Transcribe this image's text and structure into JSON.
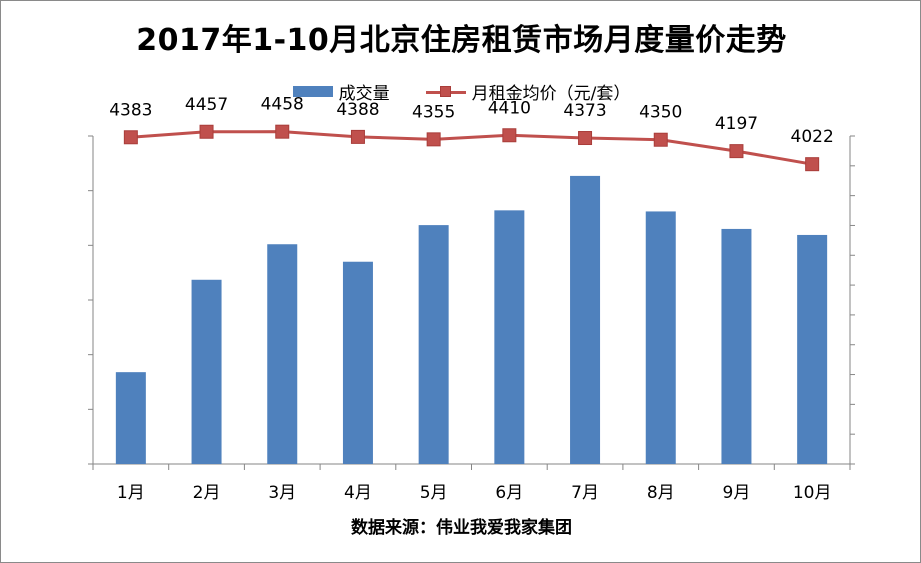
{
  "chart_data": {
    "type": "bar+line",
    "title": "2017年1-10月北京住房租赁市场月度量价走势",
    "categories": [
      "1月",
      "2月",
      "3月",
      "4月",
      "5月",
      "6月",
      "7月",
      "8月",
      "9月",
      "10月"
    ],
    "series": [
      {
        "name": "成交量",
        "type": "bar",
        "axis": "left",
        "values": [
          1.68,
          3.37,
          4.02,
          3.7,
          4.37,
          4.64,
          5.27,
          4.62,
          4.3,
          4.19
        ]
      },
      {
        "name": "月租金均价（元/套）",
        "type": "line",
        "axis": "right",
        "values": [
          4383,
          4457,
          4458,
          4388,
          4355,
          4410,
          4373,
          4350,
          4197,
          4022
        ],
        "data_labels": [
          "4383",
          "4457",
          "4458",
          "4388",
          "4355",
          "4410",
          "4373",
          "4350",
          "4197",
          "4022"
        ]
      }
    ],
    "y_left": {
      "ylim": [
        0,
        6
      ],
      "tick_labels_shown": false,
      "ticks": [
        0,
        1,
        2,
        3,
        4,
        5,
        6
      ]
    },
    "y_right": {
      "ylim": [
        0,
        4400
      ],
      "tick_labels_shown": false,
      "ticks": [
        0,
        400,
        800,
        1200,
        1600,
        2000,
        2400,
        2800,
        3200,
        3600,
        4000,
        4400
      ]
    },
    "legend": "top-center",
    "grid": false,
    "colors": {
      "bar": "#4f81bd",
      "line": "#c0504d",
      "axis": "#868686"
    }
  },
  "source_note": "数据来源：伟业我爱我家集团"
}
